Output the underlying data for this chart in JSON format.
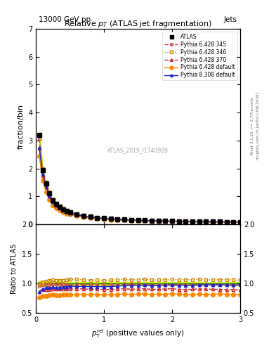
{
  "title": "Relative $p_T$ (ATLAS jet fragmentation)",
  "header_left": "13000 GeV pp",
  "header_right": "Jets",
  "ylabel_main": "fraction/bin",
  "ylabel_ratio": "Ratio to ATLAS",
  "watermark": "ATLAS_2019_I1740909",
  "right_label1": "Rivet 3.1.10, >= 2.7M events",
  "right_label2": "mcplots.cern.ch [arXiv:1306.3436]",
  "ylim_main": [
    0,
    7
  ],
  "ylim_ratio": [
    0.5,
    2.0
  ],
  "xlim": [
    0,
    3
  ],
  "x_data": [
    0.05,
    0.1,
    0.15,
    0.2,
    0.25,
    0.3,
    0.35,
    0.4,
    0.45,
    0.5,
    0.6,
    0.7,
    0.8,
    0.9,
    1.0,
    1.1,
    1.2,
    1.3,
    1.4,
    1.5,
    1.6,
    1.7,
    1.8,
    1.9,
    2.0,
    2.1,
    2.2,
    2.3,
    2.4,
    2.5,
    2.6,
    2.7,
    2.8,
    2.9,
    3.0
  ],
  "atlas_y": [
    3.2,
    1.95,
    1.45,
    1.1,
    0.85,
    0.72,
    0.62,
    0.54,
    0.48,
    0.43,
    0.36,
    0.31,
    0.27,
    0.24,
    0.22,
    0.2,
    0.185,
    0.17,
    0.16,
    0.15,
    0.14,
    0.135,
    0.128,
    0.122,
    0.116,
    0.112,
    0.108,
    0.104,
    0.1,
    0.097,
    0.094,
    0.091,
    0.088,
    0.086,
    0.084
  ],
  "atlas_err": [
    0.15,
    0.08,
    0.05,
    0.04,
    0.03,
    0.025,
    0.02,
    0.018,
    0.015,
    0.013,
    0.01,
    0.009,
    0.008,
    0.007,
    0.006,
    0.006,
    0.005,
    0.005,
    0.004,
    0.004,
    0.004,
    0.004,
    0.003,
    0.003,
    0.003,
    0.003,
    0.003,
    0.003,
    0.003,
    0.002,
    0.002,
    0.002,
    0.002,
    0.002,
    0.002
  ],
  "py6_345_y": [
    3.05,
    1.9,
    1.42,
    1.08,
    0.84,
    0.71,
    0.61,
    0.53,
    0.47,
    0.42,
    0.355,
    0.305,
    0.265,
    0.235,
    0.215,
    0.195,
    0.182,
    0.168,
    0.158,
    0.148,
    0.138,
    0.132,
    0.125,
    0.12,
    0.114,
    0.11,
    0.106,
    0.102,
    0.098,
    0.095,
    0.092,
    0.089,
    0.086,
    0.083,
    0.082
  ],
  "py6_346_y": [
    3.2,
    2.0,
    1.5,
    1.15,
    0.9,
    0.76,
    0.65,
    0.57,
    0.51,
    0.46,
    0.385,
    0.33,
    0.285,
    0.255,
    0.232,
    0.212,
    0.197,
    0.182,
    0.17,
    0.16,
    0.15,
    0.143,
    0.136,
    0.13,
    0.124,
    0.119,
    0.115,
    0.111,
    0.107,
    0.103,
    0.1,
    0.097,
    0.094,
    0.091,
    0.089
  ],
  "py6_370_y": [
    2.75,
    1.75,
    1.3,
    0.98,
    0.77,
    0.65,
    0.56,
    0.49,
    0.435,
    0.39,
    0.328,
    0.282,
    0.244,
    0.218,
    0.198,
    0.18,
    0.168,
    0.155,
    0.145,
    0.136,
    0.128,
    0.122,
    0.116,
    0.111,
    0.106,
    0.101,
    0.097,
    0.094,
    0.091,
    0.088,
    0.085,
    0.082,
    0.079,
    0.077,
    0.075
  ],
  "py6_def_y": [
    2.45,
    1.55,
    1.15,
    0.88,
    0.69,
    0.58,
    0.5,
    0.44,
    0.39,
    0.35,
    0.295,
    0.254,
    0.22,
    0.196,
    0.178,
    0.162,
    0.151,
    0.14,
    0.131,
    0.123,
    0.116,
    0.11,
    0.105,
    0.1,
    0.096,
    0.092,
    0.088,
    0.085,
    0.082,
    0.079,
    0.077,
    0.075,
    0.072,
    0.07,
    0.068
  ],
  "py8_def_y": [
    2.75,
    1.78,
    1.35,
    1.02,
    0.8,
    0.67,
    0.58,
    0.51,
    0.455,
    0.41,
    0.343,
    0.295,
    0.256,
    0.228,
    0.208,
    0.19,
    0.177,
    0.164,
    0.154,
    0.145,
    0.137,
    0.13,
    0.124,
    0.119,
    0.113,
    0.109,
    0.105,
    0.101,
    0.098,
    0.095,
    0.092,
    0.089,
    0.086,
    0.084,
    0.082
  ],
  "color_atlas": "#000000",
  "color_py6_345": "#cc4444",
  "color_py6_346": "#cc8800",
  "color_py6_370": "#cc2222",
  "color_py6_def": "#ff8800",
  "color_py8_def": "#2222cc",
  "color_band": "#ccff00",
  "legend_entries": [
    "ATLAS",
    "Pythia 6.428 345",
    "Pythia 6.428 346",
    "Pythia 6.428 370",
    "Pythia 6.428 default",
    "Pythia 8.308 default"
  ]
}
